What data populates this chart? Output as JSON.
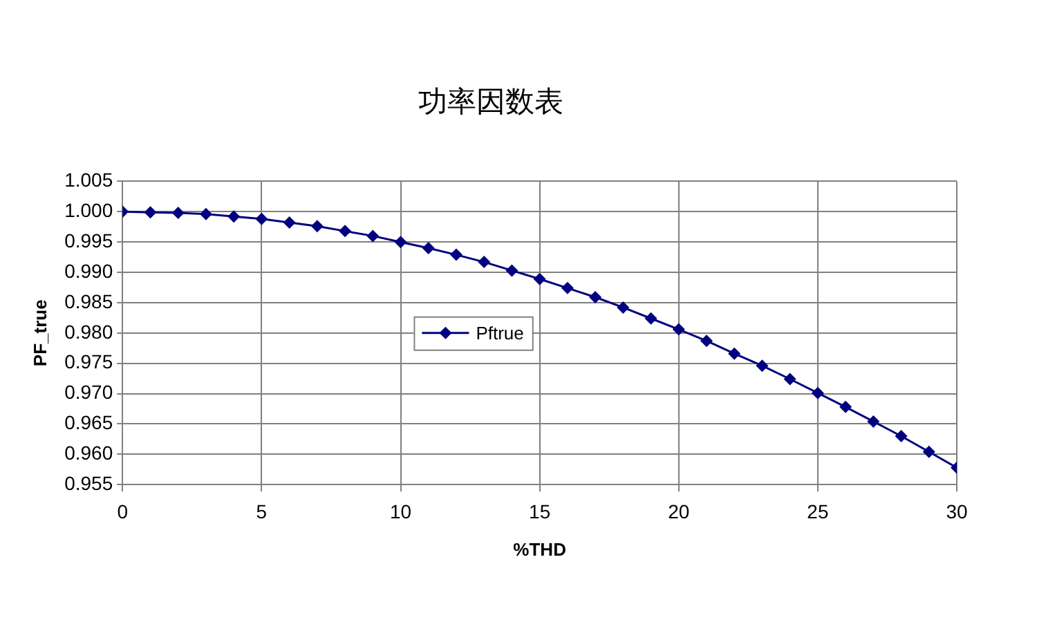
{
  "chart_data": {
    "type": "line",
    "title": "功率因数表",
    "xlabel": "%THD",
    "ylabel": "PF_true",
    "x": [
      0,
      1,
      2,
      3,
      4,
      5,
      6,
      7,
      8,
      9,
      10,
      11,
      12,
      13,
      14,
      15,
      16,
      17,
      18,
      19,
      20,
      21,
      22,
      23,
      24,
      25,
      26,
      27,
      28,
      29,
      30
    ],
    "series": [
      {
        "name": "Pftrue",
        "color": "#000080",
        "values": [
          1.0,
          0.9999,
          0.9998,
          0.9996,
          0.9992,
          0.9988,
          0.9982,
          0.9976,
          0.9968,
          0.996,
          0.995,
          0.994,
          0.9929,
          0.9917,
          0.9903,
          0.9889,
          0.9874,
          0.9859,
          0.9842,
          0.9824,
          0.9806,
          0.9787,
          0.9766,
          0.9746,
          0.9724,
          0.9701,
          0.9678,
          0.9654,
          0.963,
          0.9604,
          0.9578
        ]
      }
    ],
    "xlim": [
      0,
      30
    ],
    "xticks": [
      0,
      5,
      10,
      15,
      20,
      25,
      30
    ],
    "ylim": [
      0.955,
      1.005
    ],
    "yticks": [
      0.955,
      {
        "value": 0.96,
        "label": "0.960"
      },
      0.965,
      {
        "value": 0.97,
        "label": "0.970"
      },
      0.975,
      {
        "value": 0.98,
        "label": "0.980"
      },
      0.985,
      {
        "value": 0.99,
        "label": "0.990"
      },
      0.995,
      {
        "value": 1,
        "label": "1.000"
      },
      1.005
    ],
    "grid": true,
    "legend": "center",
    "marker": "diamond",
    "line_style": "solid"
  }
}
